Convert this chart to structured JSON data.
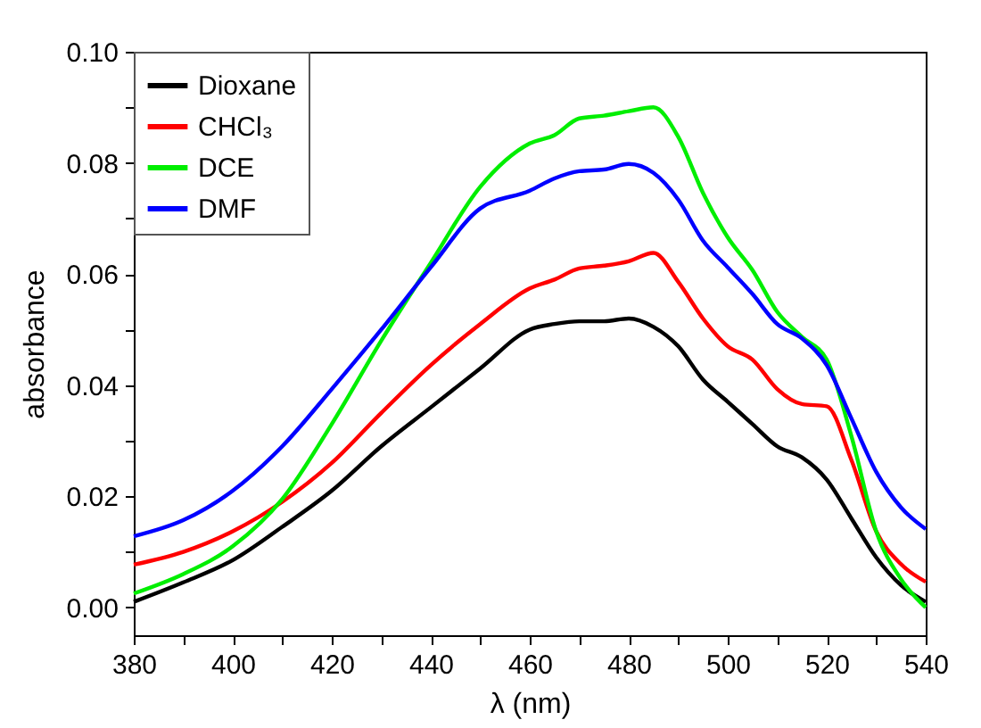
{
  "chart_data": {
    "type": "line",
    "xlabel": "λ (nm)",
    "ylabel": "absorbance",
    "x": [
      380,
      390,
      400,
      410,
      420,
      430,
      440,
      450,
      460,
      465,
      470,
      475,
      480,
      485,
      490,
      495,
      500,
      505,
      510,
      515,
      520,
      525,
      530,
      535,
      540
    ],
    "series": [
      {
        "name": "Dioxane",
        "color": "#000000",
        "values": [
          0.001,
          0.0045,
          0.0085,
          0.0145,
          0.021,
          0.029,
          0.036,
          0.043,
          0.05,
          0.051,
          0.0515,
          0.0515,
          0.052,
          0.0505,
          0.047,
          0.041,
          0.037,
          0.033,
          0.029,
          0.027,
          0.023,
          0.016,
          0.009,
          0.004,
          0.001
        ]
      },
      {
        "name": "CHCl₃",
        "color": "#ff0000",
        "values": [
          0.0077,
          0.01,
          0.0137,
          0.019,
          0.026,
          0.035,
          0.0436,
          0.051,
          0.0574,
          0.059,
          0.061,
          0.0615,
          0.0623,
          0.0638,
          0.0586,
          0.052,
          0.047,
          0.0446,
          0.0393,
          0.0366,
          0.0362,
          0.0265,
          0.0137,
          0.0078,
          0.0046
        ]
      },
      {
        "name": "DCE",
        "color": "#00ee00",
        "values": [
          0.0025,
          0.006,
          0.011,
          0.0195,
          0.033,
          0.048,
          0.062,
          0.0757,
          0.0835,
          0.085,
          0.088,
          0.0885,
          0.0893,
          0.09,
          0.0847,
          0.0746,
          0.0666,
          0.0607,
          0.0532,
          0.0487,
          0.0446,
          0.0308,
          0.0137,
          0.0051,
          0.0
        ]
      },
      {
        "name": "DMF",
        "color": "#0000ff",
        "values": [
          0.0128,
          0.0157,
          0.021,
          0.029,
          0.0393,
          0.05,
          0.0612,
          0.0718,
          0.075,
          0.0772,
          0.0785,
          0.0788,
          0.0798,
          0.0782,
          0.0734,
          0.066,
          0.0612,
          0.0564,
          0.051,
          0.0484,
          0.0436,
          0.034,
          0.0244,
          0.018,
          0.0141
        ]
      }
    ],
    "xlim": [
      380,
      540
    ],
    "xticks": [
      380,
      {
        "value": 390,
        "label": null
      },
      400,
      {
        "value": 410,
        "label": null
      },
      420,
      {
        "value": 430,
        "label": null
      },
      440,
      {
        "value": 450,
        "label": null
      },
      460,
      {
        "value": 470,
        "label": null
      },
      480,
      {
        "value": 490,
        "label": null
      },
      500,
      {
        "value": 510,
        "label": null
      },
      520,
      {
        "value": 530,
        "label": null
      },
      540
    ],
    "ylim": [
      -0.005,
      0.1
    ],
    "yticks": [
      {
        "value": 0,
        "label": "0.00"
      },
      {
        "value": 0.01,
        "label": null
      },
      {
        "value": 0.02,
        "label": "0.02"
      },
      {
        "value": 0.03,
        "label": null
      },
      {
        "value": 0.04,
        "label": "0.04"
      },
      {
        "value": 0.05,
        "label": null
      },
      {
        "value": 0.06,
        "label": "0.06"
      },
      {
        "value": 0.07,
        "label": null
      },
      {
        "value": 0.08,
        "label": "0.08"
      },
      {
        "value": 0.09,
        "label": null
      },
      {
        "value": 0.1,
        "label": "0.10"
      }
    ],
    "legend": "top left",
    "grid": false,
    "line_style": "solid",
    "marker": "none"
  }
}
